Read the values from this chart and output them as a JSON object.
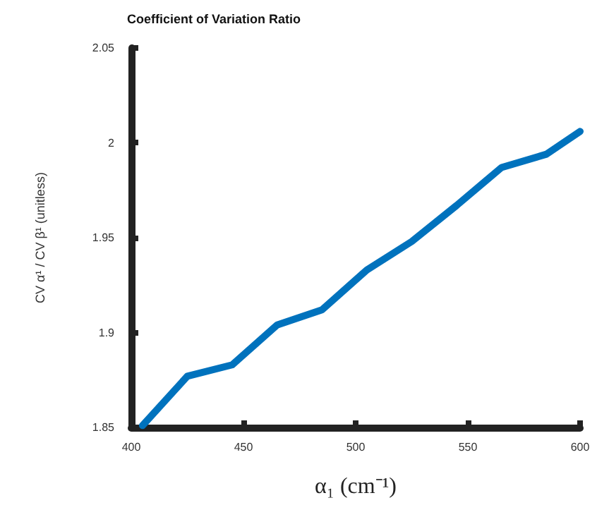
{
  "chart_data": {
    "type": "line",
    "title": "Coefficient of Variation Ratio",
    "xlabel": "α₁ (cm⁻¹)",
    "ylabel": "CV α¹ / CV β¹ (unitless)",
    "x": [
      405,
      425,
      445,
      465,
      485,
      505,
      525,
      545,
      565,
      585,
      600
    ],
    "series": [
      {
        "color": "#0072bd",
        "values": [
          1.851,
          1.877,
          1.883,
          1.904,
          1.912,
          1.933,
          1.948,
          1.967,
          1.987,
          1.994,
          2.006
        ]
      }
    ],
    "xlim": [
      400,
      600
    ],
    "xticks": [
      400,
      450,
      500,
      550,
      600
    ],
    "ylim": [
      1.85,
      2.05
    ],
    "yticks": [
      1.85,
      1.9,
      1.95,
      2,
      2.05
    ],
    "grid": false,
    "marker": "none",
    "line_style": "solid"
  }
}
